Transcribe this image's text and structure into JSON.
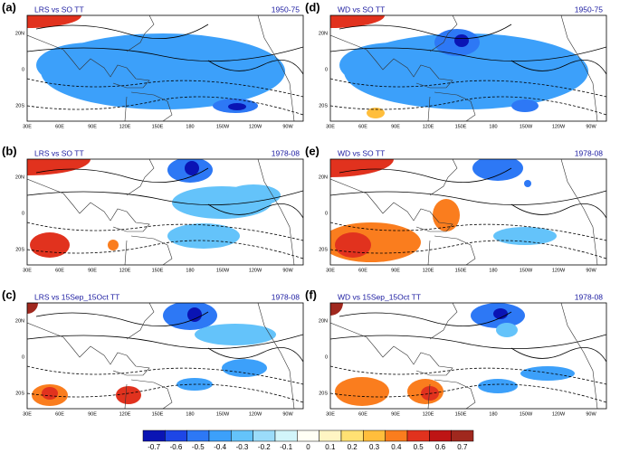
{
  "panels": [
    {
      "label": "(a)",
      "title": "LRS vs SO TT",
      "period": "1950-75"
    },
    {
      "label": "(d)",
      "title": "WD vs SO TT",
      "period": "1950-75"
    },
    {
      "label": "(b)",
      "title": "LRS vs SO TT",
      "period": "1978-08"
    },
    {
      "label": "(e)",
      "title": "WD vs SO TT",
      "period": "1978-08"
    },
    {
      "label": "(c)",
      "title": "LRS vs 15Sep_15Oct TT",
      "period": "1978-08"
    },
    {
      "label": "(f)",
      "title": "WD vs 15Sep_15Oct TT",
      "period": "1978-08"
    }
  ],
  "lat_labels": [
    "20N",
    "0",
    "20S"
  ],
  "lon_labels": [
    "30E",
    "60E",
    "90E",
    "120E",
    "150E",
    "180",
    "150W",
    "120W",
    "90W"
  ],
  "colorbar": {
    "ticks": [
      -0.7,
      -0.6,
      -0.5,
      -0.4,
      -0.3,
      -0.2,
      -0.1,
      0,
      0.1,
      0.2,
      0.3,
      0.4,
      0.5,
      0.6,
      0.7
    ],
    "colors": [
      "#0a14b4",
      "#1e46e6",
      "#2d78f5",
      "#3ca0fa",
      "#64c3fa",
      "#9bdcfa",
      "#d2f5fa",
      "#fffff5",
      "#fff5c3",
      "#ffe173",
      "#ffbe3c",
      "#fa7d1e",
      "#e1321e",
      "#be1414",
      "#a0281e"
    ]
  }
}
